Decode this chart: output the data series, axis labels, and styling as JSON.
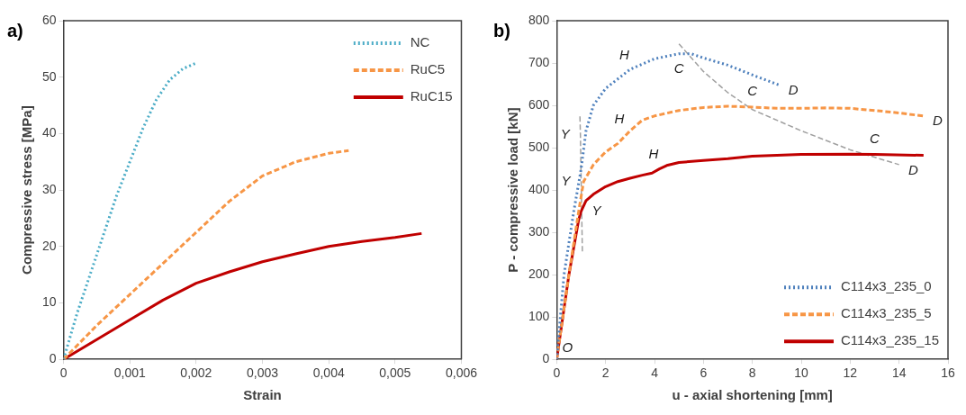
{
  "chart_data": [
    {
      "type": "line",
      "title": "a)",
      "xlabel": "Strain",
      "ylabel": "Compressive stress [MPa]",
      "xlim": [
        0,
        0.006
      ],
      "xticks": [
        0,
        {
          "value": 0.001,
          "label": "0,001"
        },
        {
          "value": 0.002,
          "label": "0,002"
        },
        {
          "value": 0.003,
          "label": "0,003"
        },
        {
          "value": 0.004,
          "label": "0,004"
        },
        {
          "value": 0.005,
          "label": "0,005"
        },
        {
          "value": 0.006,
          "label": "0,006"
        }
      ],
      "ylim": [
        0,
        60
      ],
      "yticks": [
        0,
        10,
        20,
        30,
        40,
        50,
        60
      ],
      "grid": false,
      "legend": "top right",
      "marker": "none",
      "series": [
        {
          "name": "NC",
          "color": "#4bacc6",
          "line_style": "dotted",
          "x": [
            0,
            0.0002,
            0.0004,
            0.0006,
            0.0008,
            0.001,
            0.0012,
            0.0014,
            0.0016,
            0.0018,
            0.002
          ],
          "values": [
            0,
            8,
            15,
            22,
            29,
            35,
            41,
            46,
            49.5,
            51.5,
            52.5
          ]
        },
        {
          "name": "RuC5",
          "color": "#f79646",
          "line_style": "dashed",
          "x": [
            0,
            0.0005,
            0.001,
            0.0015,
            0.002,
            0.0025,
            0.003,
            0.0035,
            0.004,
            0.0043
          ],
          "values": [
            0,
            6,
            11.5,
            17,
            22.5,
            28,
            32.5,
            35,
            36.5,
            37
          ]
        },
        {
          "name": "RuC15",
          "color": "#c00000",
          "line_style": "solid",
          "x": [
            0,
            0.0005,
            0.001,
            0.0015,
            0.002,
            0.0025,
            0.003,
            0.0035,
            0.004,
            0.0045,
            0.005,
            0.0054
          ],
          "values": [
            0,
            3.5,
            7,
            10.5,
            13.5,
            15.5,
            17.3,
            18.7,
            20,
            20.9,
            21.6,
            22.3
          ]
        }
      ]
    },
    {
      "type": "line",
      "title": "b)",
      "xlabel": "u - axial shortening [mm]",
      "ylabel": "P - compressive load [kN]",
      "xlim": [
        0,
        16
      ],
      "xticks": [
        0,
        2,
        4,
        6,
        8,
        10,
        12,
        14,
        16
      ],
      "ylim": [
        0,
        800
      ],
      "yticks": [
        0,
        100,
        200,
        300,
        400,
        500,
        600,
        700,
        800
      ],
      "grid": false,
      "legend": "bottom right",
      "marker": "none",
      "series": [
        {
          "name": "C114x3_235_0",
          "color": "#4f81bd",
          "line_style": "dotted",
          "x": [
            0,
            0.3,
            0.7,
            1,
            1.2,
            1.5,
            2,
            3,
            4,
            5,
            5.5,
            6,
            7,
            8,
            9,
            9.1
          ],
          "values": [
            0,
            200,
            350,
            450,
            540,
            600,
            640,
            685,
            710,
            722,
            722,
            712,
            695,
            672,
            650,
            648
          ]
        },
        {
          "name": "C114x3_235_5",
          "color": "#f79646",
          "line_style": "dashed",
          "x": [
            0,
            0.5,
            0.9,
            1.1,
            1.5,
            2,
            2.5,
            3,
            3.5,
            4,
            5,
            6,
            7,
            8,
            9,
            10,
            11,
            12,
            13,
            14,
            15
          ],
          "values": [
            0,
            200,
            350,
            420,
            460,
            490,
            510,
            540,
            565,
            575,
            588,
            595,
            598,
            596,
            593,
            593,
            594,
            593,
            588,
            582,
            575
          ]
        },
        {
          "name": "C114x3_235_15",
          "color": "#c00000",
          "line_style": "solid",
          "x": [
            0,
            0.5,
            0.9,
            1,
            1.2,
            1.5,
            2,
            2.5,
            3,
            3.5,
            3.9,
            4.2,
            4.5,
            5,
            6,
            7,
            8,
            9,
            10,
            12,
            13,
            15
          ],
          "values": [
            0,
            200,
            330,
            350,
            375,
            390,
            408,
            420,
            428,
            435,
            440,
            450,
            458,
            465,
            470,
            474,
            480,
            482,
            484,
            485,
            484,
            482
          ]
        },
        {
          "color": "#a0a0a0",
          "line_style": "dashed",
          "x": [
            1.05,
            1,
            0.97,
            0.95
          ],
          "values": [
            255,
            420,
            530,
            575
          ]
        },
        {
          "color": "#a0a0a0",
          "line_style": "dashed",
          "x": [
            5,
            6,
            7,
            8,
            10,
            12,
            14
          ],
          "values": [
            745,
            680,
            630,
            590,
            540,
            495,
            460
          ]
        }
      ],
      "annotations": [
        {
          "text": "O",
          "x": 0,
          "y": 0
        },
        {
          "text": "Y",
          "x": 0.97,
          "y": 530
        },
        {
          "text": "Y",
          "x": 1,
          "y": 420
        },
        {
          "text": "Y",
          "x": 1,
          "y": 350
        },
        {
          "text": "H",
          "x": 3,
          "y": 685
        },
        {
          "text": "H",
          "x": 3,
          "y": 540
        },
        {
          "text": "H",
          "x": 4.2,
          "y": 450
        },
        {
          "text": "C",
          "x": 5,
          "y": 722
        },
        {
          "text": "C",
          "x": 8,
          "y": 596
        },
        {
          "text": "C",
          "x": 13,
          "y": 484
        },
        {
          "text": "D",
          "x": 9.1,
          "y": 648
        },
        {
          "text": "D",
          "x": 15,
          "y": 575
        },
        {
          "text": "D",
          "x": 14,
          "y": 460
        }
      ]
    }
  ]
}
